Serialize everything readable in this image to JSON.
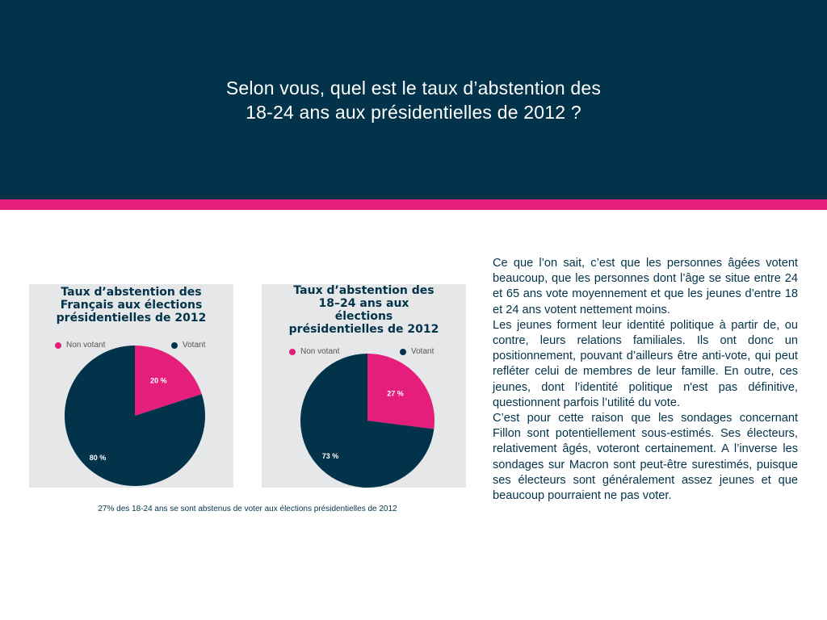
{
  "header": {
    "title_line1": "Selon vous, quel est le taux d’abstention des",
    "title_line2": "18-24 ans aux présidentielles de 2012 ?"
  },
  "colors": {
    "navy": "#02334a",
    "pink": "#e51e7c",
    "card_bg": "#e6e7e8"
  },
  "chart_data": [
    {
      "type": "pie",
      "title_lines": [
        "Taux d’abstention des",
        "Français aux élections",
        "présidentielles de 2012"
      ],
      "legend": [
        "Non votant",
        "Votant"
      ],
      "labels": [
        "Non votant",
        "Votant"
      ],
      "values": [
        20,
        80
      ],
      "value_labels": [
        "20 %",
        "80 %"
      ],
      "colors": [
        "#e51e7c",
        "#02334a"
      ],
      "legend_position": "top"
    },
    {
      "type": "pie",
      "title_lines": [
        "Taux d’abstention des",
        "18–24 ans aux",
        "élections",
        "présidentielles de 2012"
      ],
      "legend": [
        "Non votant",
        "Votant"
      ],
      "labels": [
        "Non votant",
        "Votant"
      ],
      "values": [
        27,
        73
      ],
      "value_labels": [
        "27 %",
        "73 %"
      ],
      "colors": [
        "#e51e7c",
        "#02334a"
      ],
      "legend_position": "top"
    }
  ],
  "caption": "27% des 18-24 ans se sont abstenus de voter aux élections présidentielles de 2012",
  "body": {
    "paragraph1": "Ce que l’on sait, c’est que les personnes âgées votent beaucoup, que les personnes dont l’âge se situe entre 24 et 65 ans vote moyennement et que les jeunes d’entre 18 et 24 ans votent nettement moins.",
    "paragraph2": "Les jeunes forment leur identité politique à partir de, ou contre, leurs relations familiales. Ils ont donc un positionnement, pouvant d’ailleurs être anti-vote, qui peut refléter celui de membres de leur famille. En outre, ces jeunes, dont l’identité politique n'est pas définitive, questionnent parfois l’utilité du vote.",
    "paragraph3": "C’est pour cette raison que les sondages concernant Fillon sont potentiellement sous-estimés. Ses électeurs, relativement âgés, voteront certainement. A l’inverse les sondages sur Macron sont peut-être surestimés, puisque ses électeurs sont généralement assez jeunes et que beaucoup pourraient ne pas voter."
  }
}
